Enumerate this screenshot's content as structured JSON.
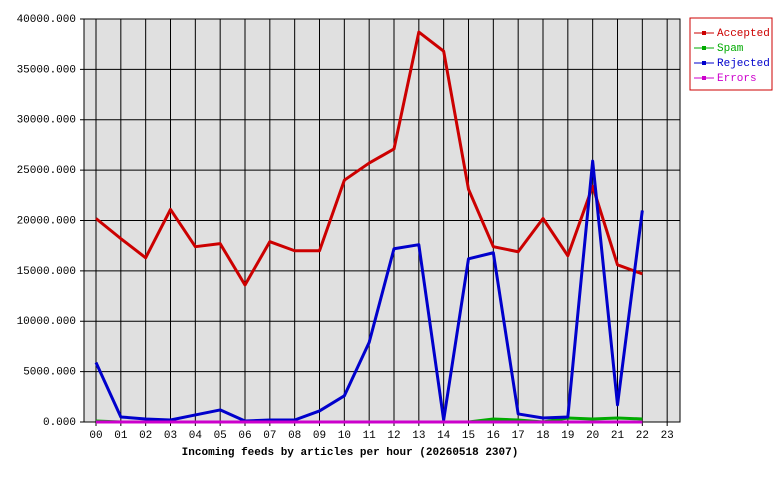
{
  "chart_data": {
    "type": "line",
    "xlabel": "Incoming feeds by articles per hour (20260518 2307)",
    "categories": [
      "00",
      "01",
      "02",
      "03",
      "04",
      "05",
      "06",
      "07",
      "08",
      "09",
      "10",
      "11",
      "12",
      "13",
      "14",
      "15",
      "16",
      "17",
      "18",
      "19",
      "20",
      "21",
      "22",
      "23"
    ],
    "series": [
      {
        "name": "Accepted",
        "color": "#cc0000",
        "values": [
          20200,
          18200,
          16300,
          21100,
          17400,
          17700,
          13600,
          17900,
          17000,
          17000,
          24000,
          25700,
          27100,
          38700,
          36800,
          23100,
          17400,
          16900,
          20200,
          16500,
          23400,
          15600,
          14700,
          null
        ]
      },
      {
        "name": "Spam",
        "color": "#00aa00",
        "values": [
          100,
          0,
          0,
          0,
          0,
          0,
          0,
          0,
          0,
          0,
          0,
          0,
          0,
          0,
          0,
          0,
          300,
          200,
          0,
          400,
          300,
          400,
          300,
          null
        ]
      },
      {
        "name": "Rejected",
        "color": "#0000cc",
        "values": [
          5900,
          500,
          300,
          200,
          700,
          1200,
          100,
          200,
          200,
          1100,
          2600,
          7900,
          17200,
          17600,
          200,
          16200,
          16800,
          800,
          400,
          500,
          25900,
          1700,
          21000,
          null
        ]
      },
      {
        "name": "Errors",
        "color": "#cc00cc",
        "values": [
          0,
          0,
          0,
          0,
          0,
          0,
          0,
          0,
          0,
          0,
          0,
          0,
          0,
          0,
          0,
          0,
          0,
          0,
          0,
          0,
          0,
          0,
          0,
          null
        ]
      }
    ],
    "ylim": [
      0,
      40000
    ],
    "yticks": [
      {
        "value": 0,
        "label": "0.000"
      },
      {
        "value": 5000,
        "label": "5000.000"
      },
      {
        "value": 10000,
        "label": "10000.000"
      },
      {
        "value": 15000,
        "label": "15000.000"
      },
      {
        "value": 20000,
        "label": "20000.000"
      },
      {
        "value": 25000,
        "label": "25000.000"
      },
      {
        "value": 30000,
        "label": "30000.000"
      },
      {
        "value": 35000,
        "label": "35000.000"
      },
      {
        "value": 40000,
        "label": "40000.000"
      }
    ],
    "grid": true,
    "legend": "top-right"
  }
}
